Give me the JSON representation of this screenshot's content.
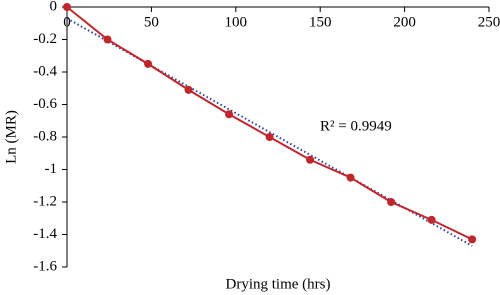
{
  "chart_data": {
    "type": "line",
    "x_label": "Drying time (hrs)",
    "y_label": "Ln (MR)",
    "annotation": "R² = 0.9949",
    "x": [
      0,
      24,
      48,
      72,
      96,
      120,
      144,
      168,
      192,
      216,
      240
    ],
    "series": [
      {
        "color": "#c0272d",
        "values": [
          0,
          -0.2,
          -0.35,
          -0.51,
          -0.66,
          -0.8,
          -0.94,
          -1.05,
          -1.2,
          -1.31,
          -1.43
        ]
      }
    ],
    "trendline": {
      "color": "#2e3f9e",
      "x": [
        0,
        240
      ],
      "values": [
        -0.07,
        -1.47
      ]
    },
    "xlim": [
      0,
      250
    ],
    "xticks": [
      0,
      50,
      100,
      150,
      200,
      250
    ],
    "ylim": [
      -1.6,
      0
    ],
    "yticks": [
      0,
      -0.2,
      -0.4,
      -0.6,
      -0.8,
      -1,
      -1.2,
      -1.4,
      -1.6
    ],
    "grid": false
  }
}
